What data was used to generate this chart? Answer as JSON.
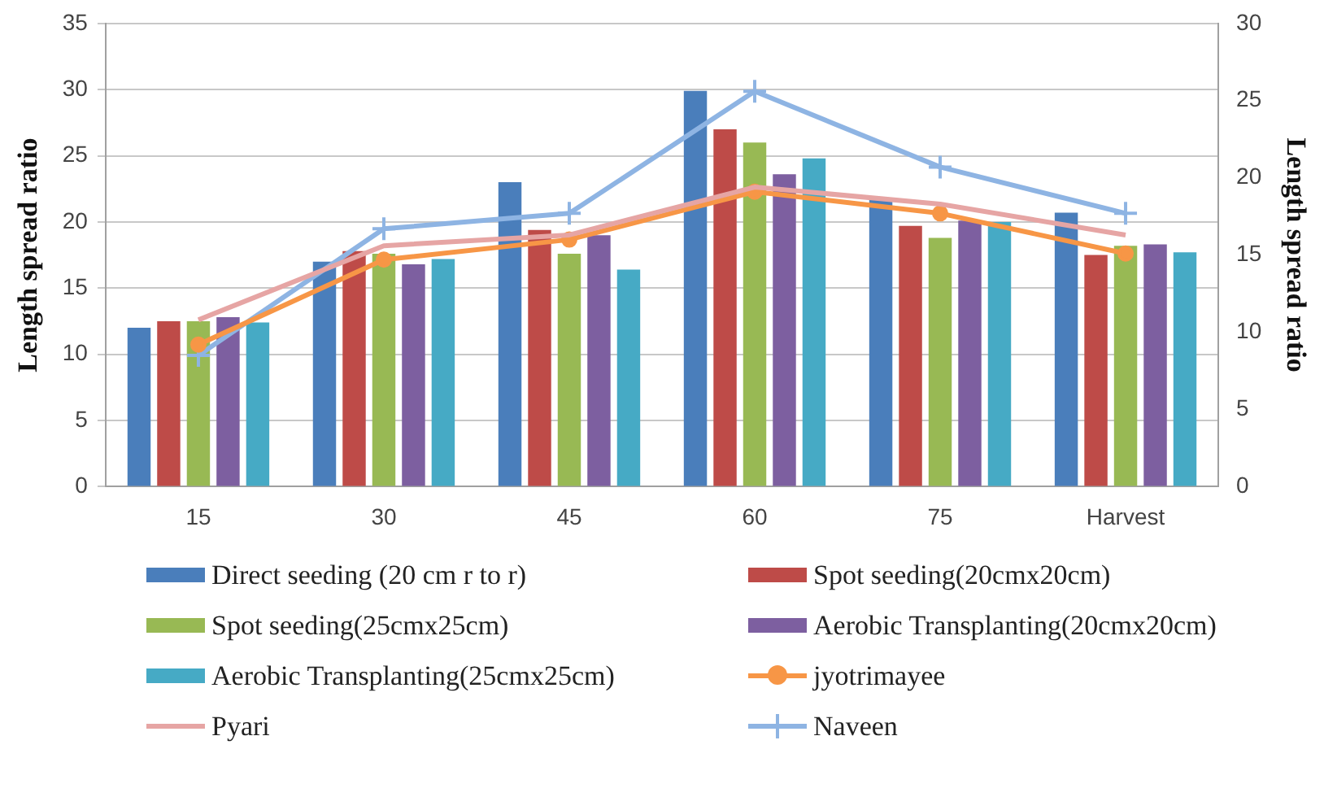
{
  "chart_data": {
    "type": "bar",
    "ylabel": "Length spread ratio",
    "y2label": "Length spread ratio",
    "categories": [
      "15",
      "30",
      "45",
      "60",
      "75",
      "Harvest"
    ],
    "series": [
      {
        "name": "Direct seeding (20 cm r to r)",
        "color": "#4a7ebb",
        "values": [
          12,
          17,
          23,
          29.9,
          21.7,
          20.7
        ]
      },
      {
        "name": "Spot seeding(20cmx20cm)",
        "color": "#be4b48",
        "values": [
          12.5,
          17.8,
          19.4,
          27,
          19.7,
          17.5
        ]
      },
      {
        "name": "Spot seeding(25cmx25cm)",
        "color": "#98b954",
        "values": [
          12.5,
          17.6,
          17.6,
          26,
          18.8,
          18.2
        ]
      },
      {
        "name": "Aerobic Transplanting(20cmx20cm)",
        "color": "#7d5fa0",
        "values": [
          12.8,
          16.8,
          19,
          23.6,
          20.1,
          18.3
        ]
      },
      {
        "name": "Aerobic Transplanting(25cmx25cm)",
        "color": "#46aac5",
        "values": [
          12.4,
          17.2,
          16.4,
          24.8,
          20,
          17.7
        ]
      },
      {
        "name": "jyotrimayee",
        "type": "line",
        "axis": "y2",
        "marker": "circle",
        "color": "#f79646",
        "values": [
          9.2,
          14.7,
          16,
          19.1,
          17.7,
          15.1
        ]
      },
      {
        "name": "Pyari",
        "type": "line",
        "axis": "y2",
        "marker": "none",
        "color": "#e6a5a4",
        "values": [
          10.8,
          15.6,
          16.3,
          19.4,
          18.3,
          16.3
        ]
      },
      {
        "name": "Naveen",
        "type": "line",
        "axis": "y2",
        "marker": "cross",
        "color": "#8eb4e3",
        "values": [
          8.5,
          16.7,
          17.7,
          25.6,
          20.7,
          17.7
        ]
      }
    ],
    "ylim": [
      0,
      35
    ],
    "yticks": [
      0,
      5,
      10,
      15,
      20,
      25,
      30,
      35
    ],
    "y2lim": [
      0,
      30
    ],
    "y2ticks": [
      0,
      5,
      10,
      15,
      20,
      25,
      30
    ],
    "grid": "y",
    "legend": "bottom"
  }
}
